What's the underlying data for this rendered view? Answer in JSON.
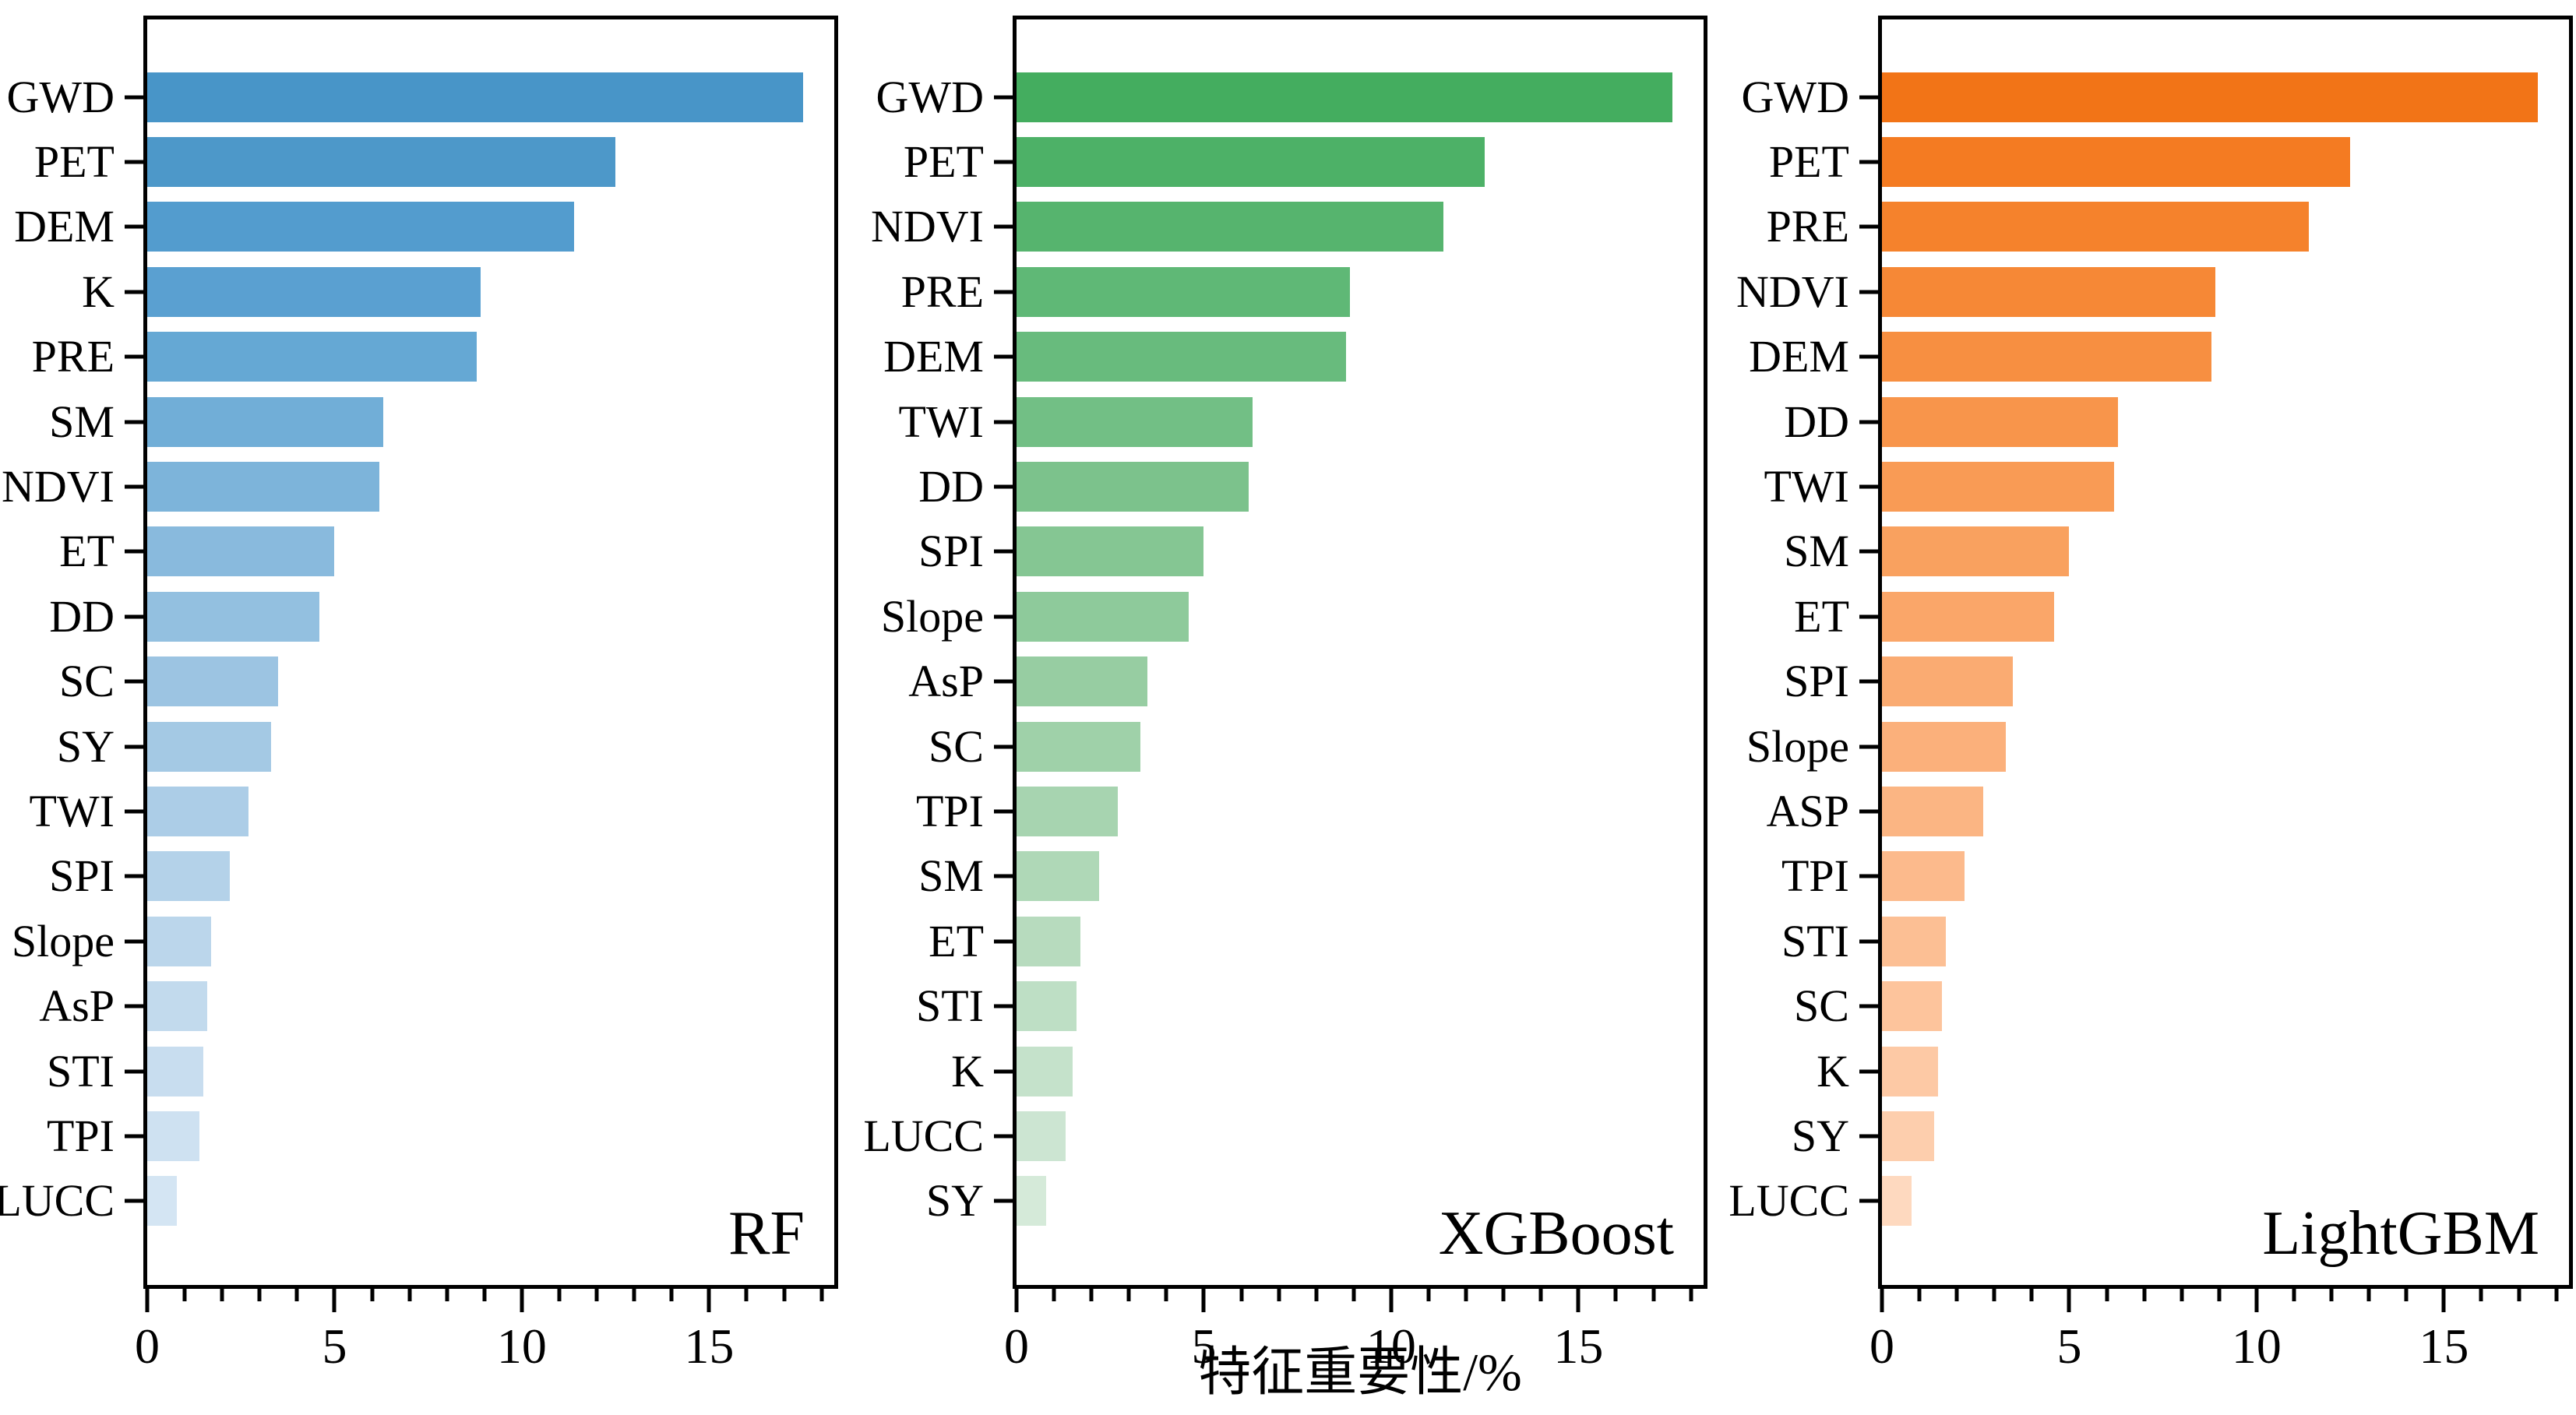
{
  "figure": {
    "xlabel": "特征重要性/%",
    "axis": {
      "xticks": [
        0,
        5,
        10,
        15
      ],
      "xmax": 18.34,
      "minor_tick_step": 1,
      "grid": false
    }
  },
  "chart_data": [
    {
      "type": "bar",
      "orientation": "horizontal",
      "model_label": "RF",
      "accent_color": "#4895c8",
      "xlabel": "特征重要性/%",
      "xlim": [
        0,
        18.34
      ],
      "xticks": [
        0,
        5,
        10,
        15
      ],
      "categories": [
        "GWD",
        "PET",
        "DEM",
        "K",
        "PRE",
        "SM",
        "NDVI",
        "ET",
        "DD",
        "SC",
        "SY",
        "TWI",
        "SPI",
        "Slope",
        "AsP",
        "STI",
        "TPI",
        "LUCC"
      ],
      "values": [
        17.5,
        12.5,
        11.4,
        8.9,
        8.8,
        6.3,
        6.2,
        5.0,
        4.6,
        3.5,
        3.3,
        2.7,
        2.2,
        1.7,
        1.6,
        1.5,
        1.4,
        0.8
      ],
      "colors": [
        "#4895c8",
        "#4d98c9",
        "#539cce",
        "#5aa0d1",
        "#65a8d4",
        "#71aed7",
        "#7db4da",
        "#89badd",
        "#93c0e0",
        "#9cc4e2",
        "#a4c9e4",
        "#accde7",
        "#b4d2e9",
        "#bbd6eb",
        "#c2daed",
        "#c8ddef",
        "#cee1f1",
        "#d4e5f3"
      ]
    },
    {
      "type": "bar",
      "orientation": "horizontal",
      "model_label": "XGBoost",
      "accent_color": "#44ad5f",
      "xlabel": "特征重要性/%",
      "xlim": [
        0,
        18.34
      ],
      "xticks": [
        0,
        5,
        10,
        15
      ],
      "categories": [
        "GWD",
        "PET",
        "NDVI",
        "PRE",
        "DEM",
        "TWI",
        "DD",
        "SPI",
        "Slope",
        "AsP",
        "SC",
        "TPI",
        "SM",
        "ET",
        "STI",
        "K",
        "LUCC",
        "SY"
      ],
      "values": [
        17.5,
        12.5,
        11.4,
        8.9,
        8.8,
        6.3,
        6.2,
        5.0,
        4.6,
        3.5,
        3.3,
        2.7,
        2.2,
        1.7,
        1.6,
        1.5,
        1.3,
        0.8
      ],
      "colors": [
        "#44ad5f",
        "#4db167",
        "#56b46e",
        "#5fb876",
        "#68bb7d",
        "#72bf85",
        "#7cc28c",
        "#85c693",
        "#8eca9b",
        "#97cda2",
        "#9fd1a9",
        "#a7d4b0",
        "#afd8b7",
        "#b7dbbe",
        "#bedfc5",
        "#c5e2cb",
        "#cce5d2",
        "#d5ead9"
      ]
    },
    {
      "type": "bar",
      "orientation": "horizontal",
      "model_label": "LightGBM",
      "accent_color": "#f27417",
      "xlabel": "特征重要性/%",
      "xlim": [
        0,
        18.34
      ],
      "xticks": [
        0,
        5,
        10,
        15
      ],
      "categories": [
        "GWD",
        "PET",
        "PRE",
        "NDVI",
        "DEM",
        "DD",
        "TWI",
        "SM",
        "ET",
        "SPI",
        "Slope",
        "ASP",
        "TPI",
        "STI",
        "SC",
        "K",
        "SY",
        "LUCC"
      ],
      "values": [
        17.5,
        12.5,
        11.4,
        8.9,
        8.8,
        6.3,
        6.2,
        5.0,
        4.6,
        3.5,
        3.3,
        2.7,
        2.2,
        1.7,
        1.6,
        1.5,
        1.4,
        0.8
      ],
      "colors": [
        "#f27417",
        "#f47b22",
        "#f5822c",
        "#f68836",
        "#f78f41",
        "#f8954b",
        "#f99b55",
        "#f9a15f",
        "#faa669",
        "#faab72",
        "#fbb07b",
        "#fbb583",
        "#fcba8c",
        "#fcbf94",
        "#fdc49c",
        "#fdc9a5",
        "#fdcead",
        "#fed9bf"
      ]
    }
  ]
}
